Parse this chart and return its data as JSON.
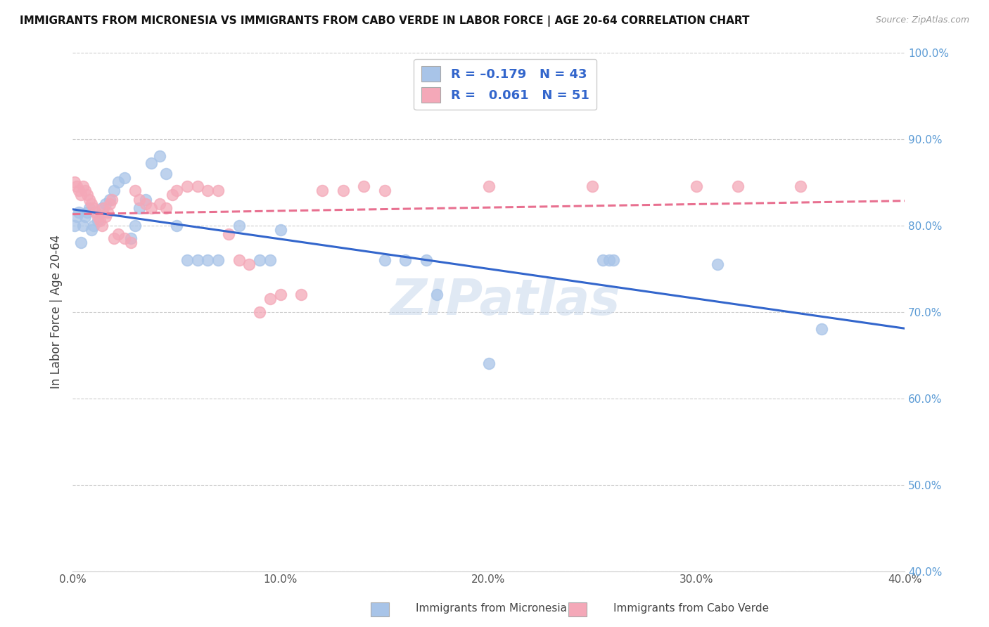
{
  "title": "IMMIGRANTS FROM MICRONESIA VS IMMIGRANTS FROM CABO VERDE IN LABOR FORCE | AGE 20-64 CORRELATION CHART",
  "source": "Source: ZipAtlas.com",
  "ylabel": "In Labor Force | Age 20-64",
  "xlim": [
    0.0,
    0.4
  ],
  "ylim": [
    0.4,
    1.0
  ],
  "xtick_labels": [
    "0.0%",
    "10.0%",
    "20.0%",
    "30.0%",
    "40.0%"
  ],
  "xtick_vals": [
    0.0,
    0.1,
    0.2,
    0.3,
    0.4
  ],
  "ytick_labels": [
    "40.0%",
    "50.0%",
    "60.0%",
    "70.0%",
    "80.0%",
    "90.0%",
    "100.0%"
  ],
  "ytick_vals": [
    0.4,
    0.5,
    0.6,
    0.7,
    0.8,
    0.9,
    1.0
  ],
  "micronesia_color": "#a8c4e8",
  "cabo_verde_color": "#f4a8b8",
  "micronesia_label": "Immigrants from Micronesia",
  "cabo_verde_label": "Immigrants from Cabo Verde",
  "trend_micronesia_color": "#3366cc",
  "trend_cabo_verde_color": "#e87090",
  "watermark": "ZIPatlas",
  "micronesia_x": [
    0.001,
    0.002,
    0.003,
    0.004,
    0.005,
    0.006,
    0.007,
    0.008,
    0.009,
    0.01,
    0.012,
    0.014,
    0.016,
    0.018,
    0.02,
    0.022,
    0.025,
    0.028,
    0.03,
    0.032,
    0.035,
    0.038,
    0.042,
    0.045,
    0.05,
    0.055,
    0.06,
    0.065,
    0.07,
    0.08,
    0.09,
    0.095,
    0.1,
    0.15,
    0.16,
    0.17,
    0.175,
    0.2,
    0.255,
    0.258,
    0.26,
    0.31,
    0.36
  ],
  "micronesia_y": [
    0.8,
    0.81,
    0.815,
    0.78,
    0.8,
    0.81,
    0.815,
    0.82,
    0.795,
    0.8,
    0.805,
    0.82,
    0.825,
    0.83,
    0.84,
    0.85,
    0.855,
    0.785,
    0.8,
    0.82,
    0.83,
    0.872,
    0.88,
    0.86,
    0.8,
    0.76,
    0.76,
    0.76,
    0.76,
    0.8,
    0.76,
    0.76,
    0.795,
    0.76,
    0.76,
    0.76,
    0.72,
    0.64,
    0.76,
    0.76,
    0.76,
    0.755,
    0.68
  ],
  "cabo_verde_x": [
    0.001,
    0.002,
    0.003,
    0.004,
    0.005,
    0.006,
    0.007,
    0.008,
    0.009,
    0.01,
    0.011,
    0.012,
    0.013,
    0.014,
    0.015,
    0.016,
    0.017,
    0.018,
    0.019,
    0.02,
    0.022,
    0.025,
    0.028,
    0.03,
    0.032,
    0.035,
    0.038,
    0.042,
    0.045,
    0.048,
    0.05,
    0.055,
    0.06,
    0.065,
    0.07,
    0.075,
    0.08,
    0.085,
    0.09,
    0.095,
    0.1,
    0.11,
    0.12,
    0.13,
    0.14,
    0.15,
    0.2,
    0.25,
    0.3,
    0.32,
    0.35
  ],
  "cabo_verde_y": [
    0.85,
    0.845,
    0.84,
    0.835,
    0.845,
    0.84,
    0.835,
    0.83,
    0.825,
    0.82,
    0.815,
    0.81,
    0.805,
    0.8,
    0.82,
    0.81,
    0.815,
    0.825,
    0.83,
    0.785,
    0.79,
    0.785,
    0.78,
    0.84,
    0.83,
    0.825,
    0.82,
    0.825,
    0.82,
    0.835,
    0.84,
    0.845,
    0.845,
    0.84,
    0.84,
    0.79,
    0.76,
    0.755,
    0.7,
    0.715,
    0.72,
    0.72,
    0.84,
    0.84,
    0.845,
    0.84,
    0.845,
    0.845,
    0.845,
    0.845,
    0.845
  ],
  "background_color": "#ffffff",
  "grid_color": "#cccccc",
  "legend_text_color": "#3366cc",
  "ytick_color": "#5b9bd5",
  "xtick_color": "#555555"
}
